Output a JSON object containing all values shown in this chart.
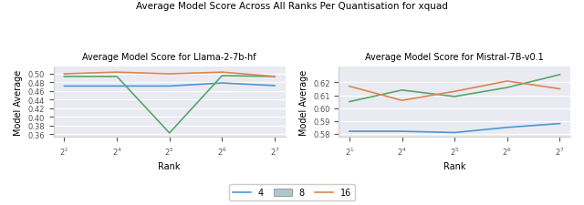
{
  "title": "Average Model Score Across All Ranks Per Quantisation for xquad",
  "subplot1_title": "Average Model Score for Llama-2-7b-hf",
  "subplot2_title": "Average Model Score for Mistral-7B-v0.1",
  "xlabel": "Rank",
  "ylabel": "Model Average",
  "x_ticks": [
    1,
    2,
    3,
    4,
    5
  ],
  "x_tick_labels": [
    "$2^1$",
    "$2^4$",
    "$2^5$",
    "$2^6$",
    "$2^7$"
  ],
  "llama_4": [
    0.471,
    0.471,
    0.471,
    0.478,
    0.472
  ],
  "llama_8": [
    0.493,
    0.493,
    0.363,
    0.495,
    0.493
  ],
  "llama_16": [
    0.499,
    0.503,
    0.499,
    0.503,
    0.493
  ],
  "mistral_4": [
    0.582,
    0.582,
    0.581,
    0.585,
    0.588
  ],
  "mistral_8": [
    0.605,
    0.614,
    0.609,
    0.616,
    0.626
  ],
  "mistral_16": [
    0.617,
    0.606,
    0.613,
    0.621,
    0.615
  ],
  "color_4": "#4C96D7",
  "color_8": "#55A868",
  "color_16": "#DD8452",
  "llama_ylim": [
    0.355,
    0.515
  ],
  "mistral_ylim": [
    0.578,
    0.632
  ],
  "llama_yticks": [
    0.36,
    0.38,
    0.4,
    0.42,
    0.44,
    0.46,
    0.48,
    0.5
  ],
  "mistral_yticks": [
    0.58,
    0.59,
    0.6,
    0.61,
    0.62
  ],
  "bg_color": "#EAEAF2",
  "legend_color_8_patch": "#AEC6CF"
}
